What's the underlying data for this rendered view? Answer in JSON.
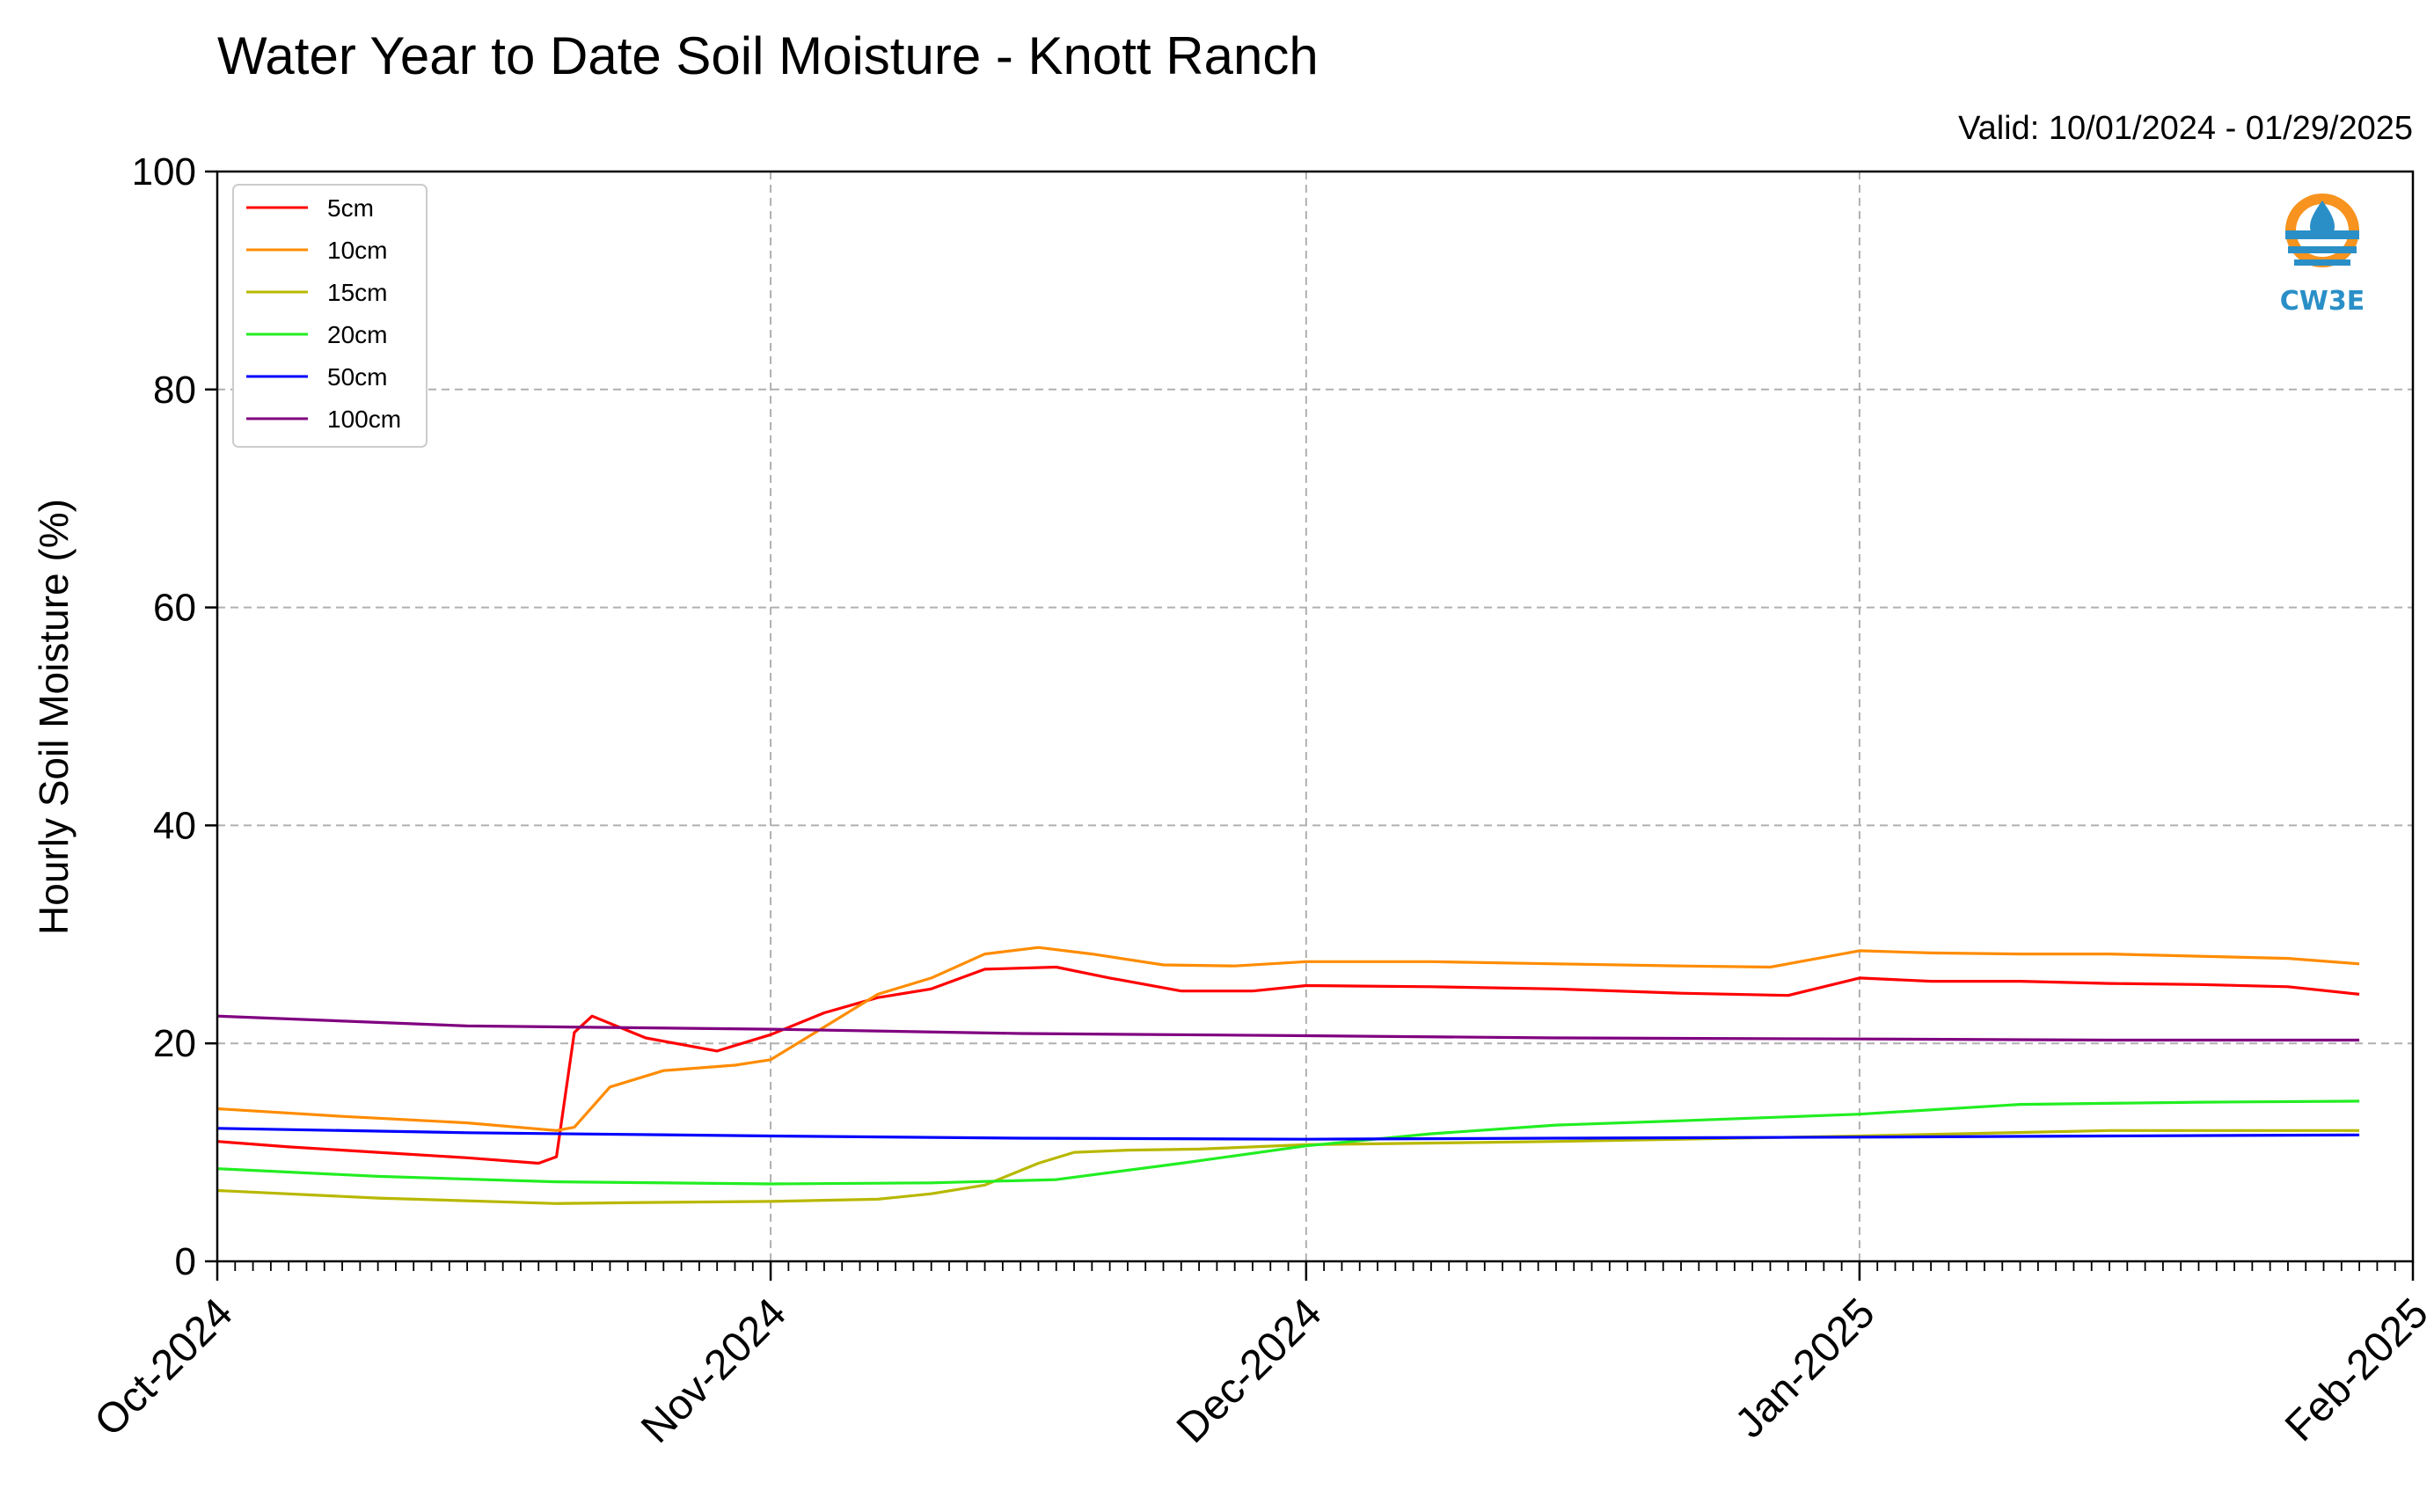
{
  "chart_data": {
    "type": "line",
    "title": "Water Year to Date Soil Moisture - Knott Ranch",
    "subtitle": "Valid: 10/01/2024 - 01/29/2025",
    "xlabel": "",
    "ylabel": "Hourly Soil Moisture (%)",
    "ylim": [
      0,
      100
    ],
    "yticks": [
      0,
      20,
      40,
      60,
      80,
      100
    ],
    "xlim": [
      "2024-10-01",
      "2025-02-01"
    ],
    "xtick_labels": [
      "Oct-2024",
      "Nov-2024",
      "Dec-2024",
      "Jan-2025",
      "Feb-2025"
    ],
    "xtick_dates": [
      "2024-10-01",
      "2024-11-01",
      "2024-12-01",
      "2025-01-01",
      "2025-02-01"
    ],
    "grid": true,
    "legend_position": "top-left",
    "series": [
      {
        "name": "5cm",
        "color": "#ff0000",
        "x": [
          "2024-10-01",
          "2024-10-05",
          "2024-10-10",
          "2024-10-15",
          "2024-10-19",
          "2024-10-20",
          "2024-10-21",
          "2024-10-22",
          "2024-10-25",
          "2024-10-29",
          "2024-11-01",
          "2024-11-04",
          "2024-11-07",
          "2024-11-10",
          "2024-11-13",
          "2024-11-17",
          "2024-11-20",
          "2024-11-24",
          "2024-11-28",
          "2024-12-01",
          "2024-12-08",
          "2024-12-15",
          "2024-12-22",
          "2024-12-28",
          "2025-01-01",
          "2025-01-05",
          "2025-01-10",
          "2025-01-15",
          "2025-01-20",
          "2025-01-25",
          "2025-01-29"
        ],
        "y": [
          11.0,
          10.5,
          10.0,
          9.5,
          9.0,
          9.6,
          21.0,
          22.5,
          20.5,
          19.3,
          20.8,
          22.8,
          24.2,
          25.0,
          26.8,
          27.0,
          26.0,
          24.8,
          24.8,
          25.3,
          25.2,
          25.0,
          24.6,
          24.4,
          26.0,
          25.7,
          25.7,
          25.5,
          25.4,
          25.2,
          24.5
        ]
      },
      {
        "name": "10cm",
        "color": "#ff8c00",
        "x": [
          "2024-10-01",
          "2024-10-08",
          "2024-10-15",
          "2024-10-20",
          "2024-10-21",
          "2024-10-23",
          "2024-10-26",
          "2024-10-30",
          "2024-11-01",
          "2024-11-04",
          "2024-11-07",
          "2024-11-10",
          "2024-11-13",
          "2024-11-16",
          "2024-11-19",
          "2024-11-23",
          "2024-11-27",
          "2024-12-01",
          "2024-12-08",
          "2024-12-15",
          "2024-12-22",
          "2024-12-27",
          "2025-01-01",
          "2025-01-05",
          "2025-01-10",
          "2025-01-15",
          "2025-01-20",
          "2025-01-25",
          "2025-01-29"
        ],
        "y": [
          14.0,
          13.3,
          12.7,
          12.0,
          12.3,
          16.0,
          17.5,
          18.0,
          18.5,
          21.5,
          24.5,
          26.0,
          28.2,
          28.8,
          28.2,
          27.2,
          27.1,
          27.5,
          27.5,
          27.3,
          27.1,
          27.0,
          28.5,
          28.3,
          28.2,
          28.2,
          28.0,
          27.8,
          27.3
        ]
      },
      {
        "name": "15cm",
        "color": "#b8b800",
        "x": [
          "2024-10-01",
          "2024-10-10",
          "2024-10-20",
          "2024-10-25",
          "2024-11-01",
          "2024-11-07",
          "2024-11-10",
          "2024-11-13",
          "2024-11-16",
          "2024-11-18",
          "2024-11-21",
          "2024-11-25",
          "2024-12-01",
          "2024-12-15",
          "2025-01-01",
          "2025-01-15",
          "2025-01-29"
        ],
        "y": [
          6.5,
          5.8,
          5.3,
          5.4,
          5.5,
          5.7,
          6.2,
          7.0,
          9.0,
          10.0,
          10.2,
          10.3,
          10.7,
          11.0,
          11.5,
          12.0,
          12.0
        ]
      },
      {
        "name": "20cm",
        "color": "#22ee22",
        "x": [
          "2024-10-01",
          "2024-10-10",
          "2024-10-20",
          "2024-11-01",
          "2024-11-10",
          "2024-11-17",
          "2024-11-24",
          "2024-12-01",
          "2024-12-08",
          "2024-12-15",
          "2024-12-22",
          "2025-01-01",
          "2025-01-10",
          "2025-01-20",
          "2025-01-29"
        ],
        "y": [
          8.5,
          7.8,
          7.3,
          7.1,
          7.2,
          7.5,
          9.0,
          10.6,
          11.7,
          12.5,
          12.9,
          13.5,
          14.4,
          14.6,
          14.7
        ]
      },
      {
        "name": "50cm",
        "color": "#0000ff",
        "x": [
          "2024-10-01",
          "2024-10-15",
          "2024-11-01",
          "2024-11-15",
          "2024-12-01",
          "2024-12-15",
          "2025-01-01",
          "2025-01-15",
          "2025-01-29"
        ],
        "y": [
          12.2,
          11.8,
          11.5,
          11.3,
          11.2,
          11.3,
          11.4,
          11.5,
          11.6
        ]
      },
      {
        "name": "100cm",
        "color": "#800080",
        "x": [
          "2024-10-01",
          "2024-10-15",
          "2024-11-01",
          "2024-11-15",
          "2024-12-01",
          "2024-12-15",
          "2025-01-01",
          "2025-01-15",
          "2025-01-29"
        ],
        "y": [
          22.5,
          21.6,
          21.3,
          20.9,
          20.7,
          20.5,
          20.4,
          20.3,
          20.3
        ]
      }
    ]
  },
  "logo": {
    "text": "CW3E",
    "ring_color": "#f7931e",
    "wave_color": "#2a8fc7"
  }
}
